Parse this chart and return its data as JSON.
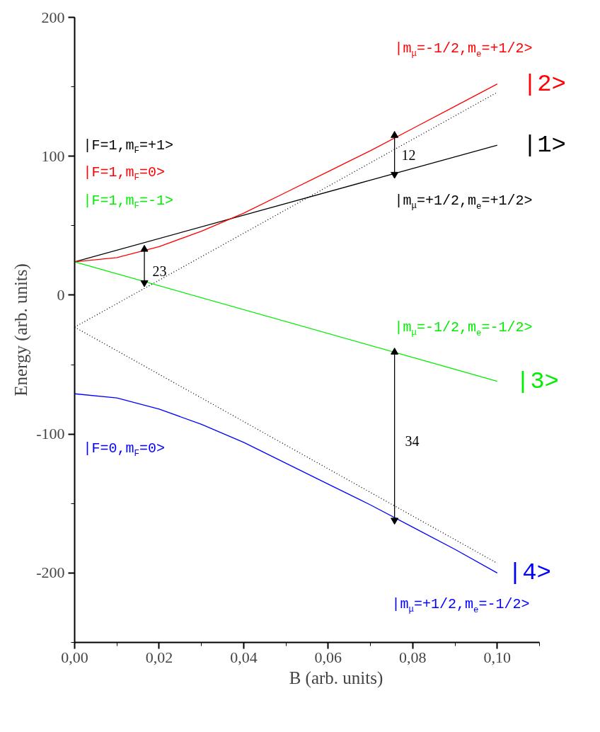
{
  "chart_data": {
    "type": "line",
    "xlabel": "B (arb. units)",
    "ylabel": "Energy (arb. units)",
    "xlim": [
      0,
      0.11
    ],
    "ylim": [
      -250,
      200
    ],
    "xticks": [
      {
        "value": 0,
        "label": "0,00"
      },
      {
        "value": 0.02,
        "label": "0,02"
      },
      {
        "value": 0.04,
        "label": "0,04"
      },
      {
        "value": 0.06,
        "label": "0,06"
      },
      {
        "value": 0.08,
        "label": "0,08"
      },
      {
        "value": 0.1,
        "label": "0,10"
      }
    ],
    "yticks": [
      -200,
      -100,
      0,
      100,
      200
    ],
    "grid": false,
    "legend": false,
    "marker": "none",
    "series": [
      {
        "name": "|1>",
        "color": "#000000",
        "x": [
          0,
          0.1
        ],
        "values": [
          24,
          108
        ]
      },
      {
        "name": "|2>",
        "color": "#ff0000",
        "x": [
          0,
          0.01,
          0.02,
          0.03,
          0.04,
          0.05,
          0.06,
          0.07,
          0.08,
          0.09,
          0.1
        ],
        "values": [
          24,
          27,
          35,
          46,
          59,
          74,
          89,
          104,
          120,
          136,
          152
        ]
      },
      {
        "name": "|3>",
        "color": "#00ee00",
        "x": [
          0,
          0.1
        ],
        "values": [
          24,
          -62
        ]
      },
      {
        "name": "|4>",
        "color": "#0000ff",
        "x": [
          0,
          0.01,
          0.02,
          0.03,
          0.04,
          0.05,
          0.06,
          0.07,
          0.08,
          0.09,
          0.1
        ],
        "values": [
          -71,
          -74,
          -82,
          -93,
          -106,
          -121,
          -136,
          -151,
          -167,
          -183,
          -200
        ]
      },
      {
        "color": "#000000",
        "line_style": "dotted",
        "x": [
          0,
          0.1
        ],
        "values": [
          -23,
          146
        ]
      },
      {
        "color": "#000000",
        "line_style": "dotted",
        "x": [
          0,
          0.1
        ],
        "values": [
          -23,
          -193
        ]
      },
      {
        "color": "#000000",
        "marker": "triangle",
        "x": [
          0.0165,
          0.0165
        ],
        "values": [
          33,
          9
        ]
      },
      {
        "color": "#000000",
        "marker": "triangle",
        "x": [
          0.0757,
          0.0757
        ],
        "values": [
          115,
          87
        ]
      },
      {
        "color": "#000000",
        "marker": "triangle",
        "x": [
          0.0757,
          0.0757
        ],
        "values": [
          -41,
          -162
        ]
      }
    ],
    "annotations": [
      "|m$_{μ}$=-1/2,m$_{e}$=+1/2>",
      "|F=1,m$_{F}$=+1>",
      "|F=1,m$_{F}$=0>",
      "|F=1,m$_{F}$=-1>",
      "|m$_{μ}$=+1/2,m$_{e}$=+1/2>",
      "|m$_{μ}$=-1/2,m$_{e}$=-1/2>",
      "|F=0,m$_{F}$=0>",
      "|m$_{μ}$=+1/2,m$_{e}$=-1/2>",
      "23",
      "12",
      "34"
    ]
  }
}
